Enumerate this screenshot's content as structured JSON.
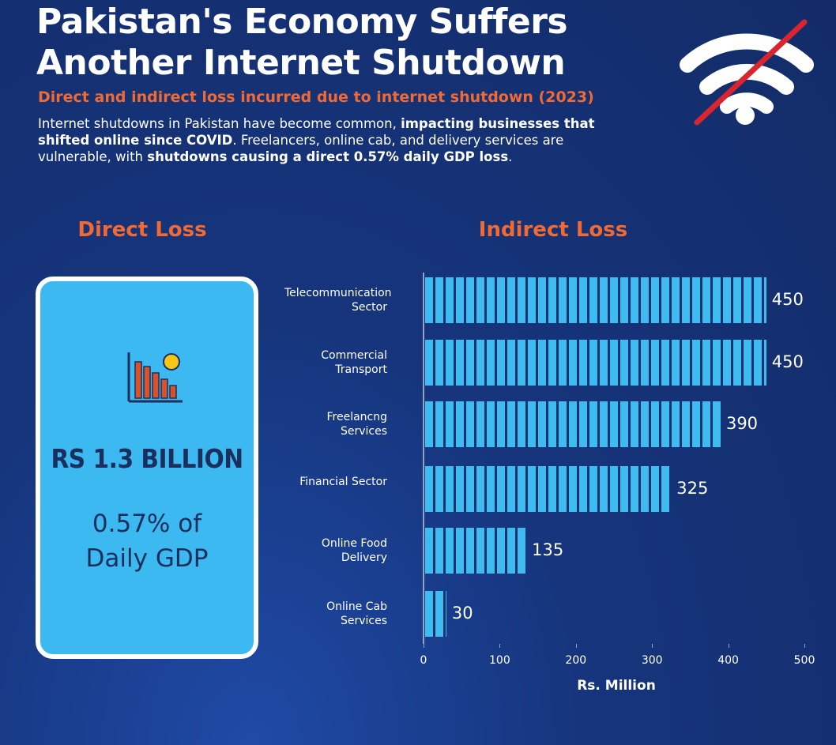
{
  "chart_data": {
    "type": "bar",
    "orientation": "horizontal",
    "title": "Pakistan's Economy Suffers Another Internet Shutdown",
    "subtitle": "Direct and indirect loss incurred due to internet shutdown (2023)",
    "description": [
      "Internet shutdowns in Pakistan have become common, ",
      "impacting businesses that shifted online since COVID",
      ". Freelancers, online cab, and delivery services are vulnerable, with ",
      "shutdowns causing a direct 0.57% daily GDP loss",
      "."
    ],
    "direct_heading": "Direct Loss",
    "indirect_heading": "Indirect Loss",
    "direct_value": "RS 1.3 BILLION",
    "direct_share": "0.57% of Daily GDP",
    "categories": [
      "Telecommunication Sector",
      "Commercial Transport",
      "Freelancng Services",
      "Financial Sector",
      "Online Food Delivery",
      "Online Cab Services"
    ],
    "values": [
      450,
      450,
      390,
      325,
      135,
      30
    ],
    "xlabel": "Rs. Million",
    "xlim": [
      0,
      500
    ],
    "xticks": [
      0,
      100,
      200,
      300,
      400,
      500
    ]
  }
}
